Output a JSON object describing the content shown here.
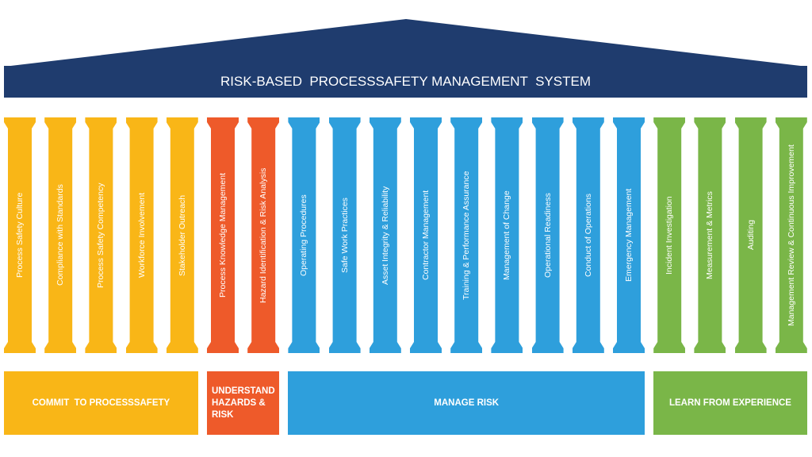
{
  "title": "RISK-BASED  PROCESSSAFETY MANAGEMENT  SYSTEM",
  "groups": [
    {
      "label": "COMMIT  TO PROCESSSAFETY",
      "color": "#f9b617",
      "pillars": [
        "Process Safety Culture",
        "Compliance with Standards",
        "Process Safety Competency",
        "Workforce Involvement",
        "Stakeholder Outreach"
      ]
    },
    {
      "label": "UNDERSTAND HAZARDS & RISK",
      "color": "#ee5a2a",
      "pillars": [
        "Process Knowledge Management",
        "Hazard Identification & Risk Analysis"
      ]
    },
    {
      "label": "MANAGE RISK",
      "color": "#2e9fdc",
      "pillars": [
        "Operating Procedures",
        "Safe Work Practices",
        "Asset Integrity & Reliability",
        "Contractor Management",
        "Training & Performance Assurance",
        "Management of Change",
        "Operational Readiness",
        "Conduct of Operations",
        "Emergency Management"
      ]
    },
    {
      "label": "LEARN FROM EXPERIENCE",
      "color": "#7ab648",
      "pillars": [
        "Incident Investigation",
        "Measurement & Metrics",
        "Auditing",
        "Management Review & Continuous Improvement"
      ]
    }
  ]
}
